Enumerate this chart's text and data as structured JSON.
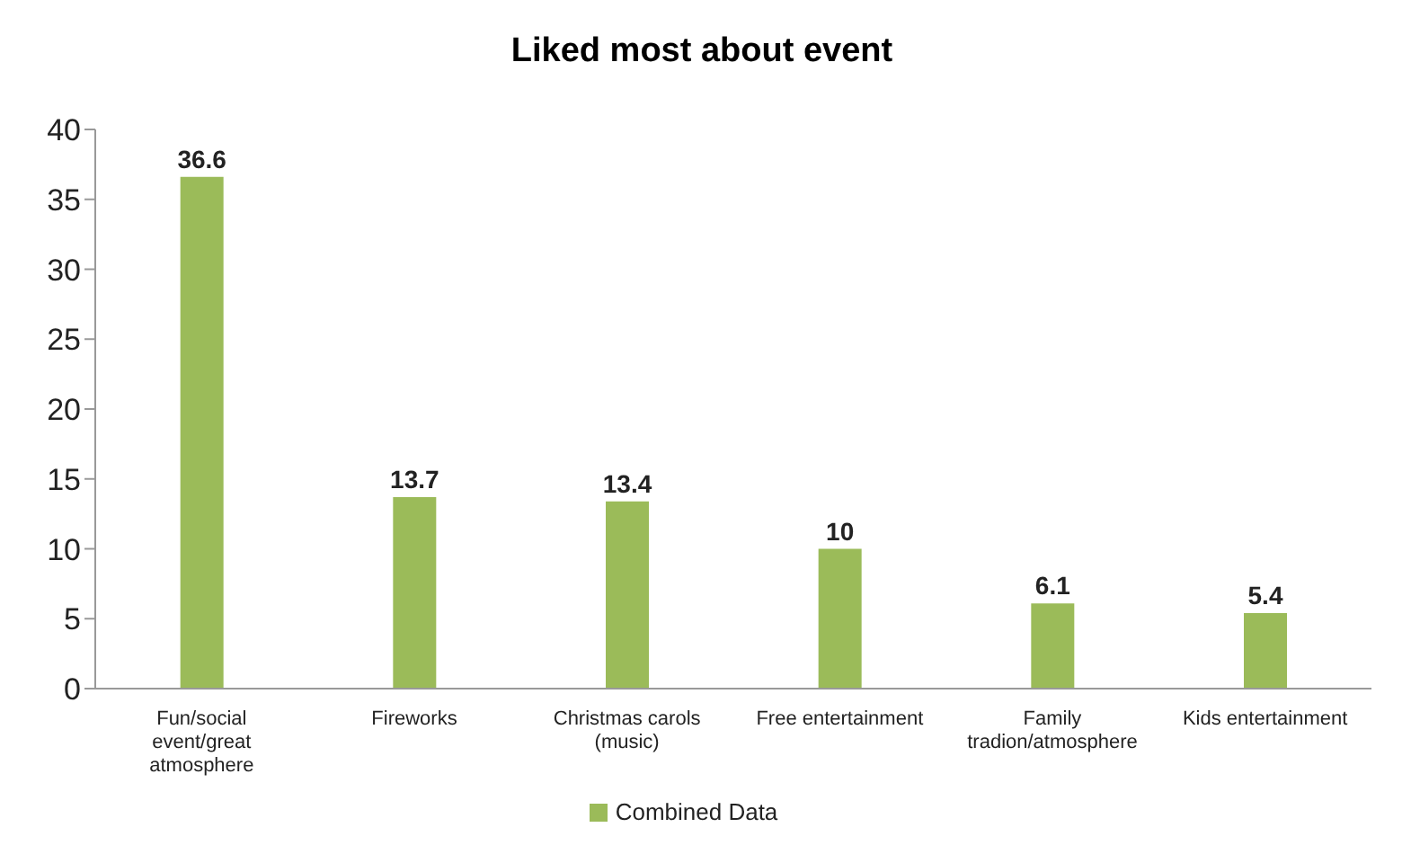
{
  "chart_data": {
    "type": "bar",
    "title": "Liked most about event",
    "categories": [
      "Fun/social event/great atmosphere",
      "Fireworks",
      "Christmas carols (music)",
      "Free entertainment",
      "Family tradion/atmosphere",
      "Kids entertainment"
    ],
    "series": [
      {
        "name": "Combined Data",
        "color": "#9bbb59",
        "values": [
          36.6,
          13.7,
          13.4,
          10,
          6.1,
          5.4
        ]
      }
    ],
    "ylim": [
      0,
      40
    ],
    "yticks": [
      0,
      5,
      10,
      15,
      20,
      25,
      30,
      35,
      40
    ],
    "grid": false,
    "legend": "bottom",
    "data_labels": true
  }
}
